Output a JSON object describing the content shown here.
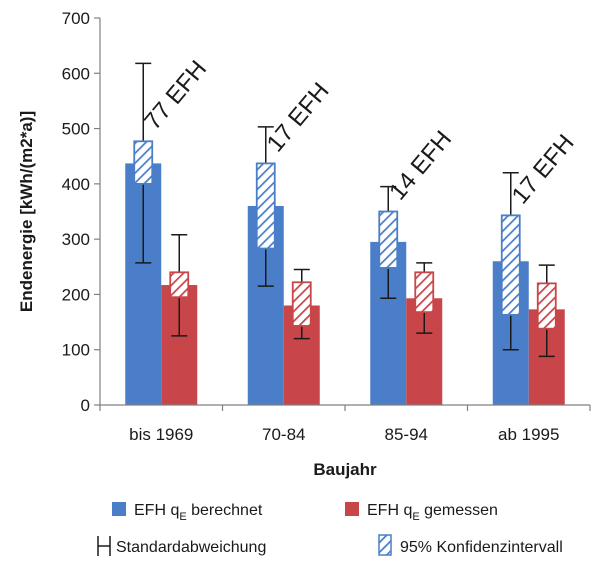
{
  "chart_data": {
    "type": "bar",
    "categories": [
      "bis 1969",
      "70-84",
      "85-94",
      "ab 1995"
    ],
    "xlabel": "Baujahr",
    "ylabel": "Endenergie [kWh/(m2*a)]",
    "ylim": [
      0,
      700
    ],
    "yticks": [
      0,
      100,
      200,
      300,
      400,
      500,
      600,
      700
    ],
    "grid": false,
    "legend_position": "bottom",
    "series": [
      {
        "name_main": "EFH q",
        "name_sub": "E",
        "name_rest": " berechnet",
        "color": "#4a7ec8",
        "values": [
          437,
          360,
          295,
          260
        ],
        "std_low": [
          257,
          215,
          193,
          100
        ],
        "std_high": [
          618,
          503,
          395,
          420
        ],
        "ci_low": [
          400,
          283,
          248,
          163
        ],
        "ci_high": [
          477,
          437,
          350,
          343
        ]
      },
      {
        "name_main": "EFH q",
        "name_sub": "E",
        "name_rest": " gemessen",
        "color": "#c8454a",
        "values": [
          217,
          180,
          193,
          173
        ],
        "std_low": [
          125,
          120,
          130,
          88
        ],
        "std_high": [
          308,
          245,
          257,
          253
        ],
        "ci_low": [
          195,
          143,
          168,
          138
        ],
        "ci_high": [
          240,
          222,
          240,
          220
        ]
      }
    ],
    "group_counts": [
      "77 EFH",
      "17 EFH",
      "14 EFH",
      "17 EFH"
    ],
    "legend_extra": [
      {
        "symbol": "errorbar",
        "label": "Standardabweichung"
      },
      {
        "symbol": "hatch",
        "label": "95% Konfidenzintervall"
      }
    ]
  }
}
